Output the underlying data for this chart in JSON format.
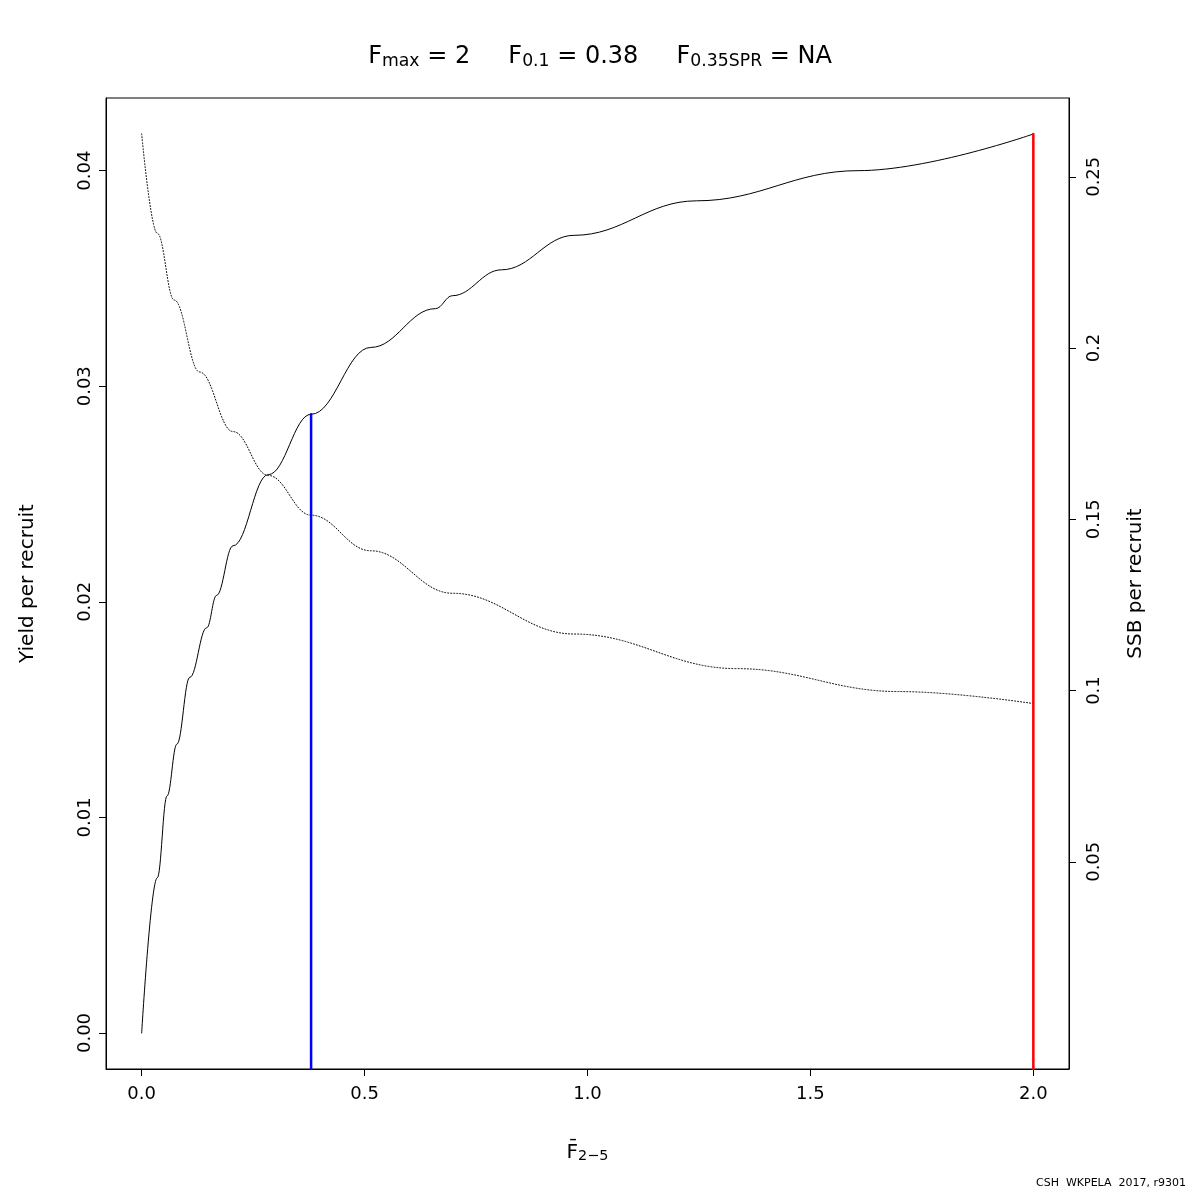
{
  "chart_data": {
    "type": "line",
    "title": "F$_{max}$ = 2     F$_{0.1}$ = 0.38     F$_{0.35SPR}$ = NA",
    "xlabel": "F̄$_{2−5}$",
    "ylabel": "Yield per recruit",
    "y2label": "SSB per recruit",
    "annotations": [
      "CSH  WKPELA  2017, r9301"
    ],
    "xlim": [
      -0.08,
      2.08
    ],
    "xticks": [
      {
        "value": 0,
        "label": "0.0"
      },
      {
        "value": 0.5,
        "label": "0.5"
      },
      {
        "value": 1,
        "label": "1.0"
      },
      {
        "value": 1.5,
        "label": "1.5"
      },
      {
        "value": 2,
        "label": "2.0"
      }
    ],
    "ylim": [
      -0.00167,
      0.04337
    ],
    "yticks": [
      {
        "value": 0,
        "label": "0.00"
      },
      {
        "value": 0.01,
        "label": "0.01"
      },
      {
        "value": 0.02,
        "label": "0.02"
      },
      {
        "value": 0.03,
        "label": "0.03"
      },
      {
        "value": 0.04,
        "label": "0.04"
      }
    ],
    "y2lim": [
      -0.0105,
      0.273
    ],
    "y2ticks": [
      0.05,
      0.1,
      0.15,
      0.2,
      0.25
    ],
    "grid": false,
    "marker": "none",
    "series": [
      {
        "color": "#000000",
        "line_style": "solid",
        "x": [
          0,
          0.035,
          0.057,
          0.079,
          0.108,
          0.146,
          0.168,
          0.205,
          0.284,
          0.38,
          0.514,
          0.659,
          0.697,
          0.807,
          0.97,
          1.244,
          1.607,
          2.0
        ],
        "values": [
          0,
          0.0072,
          0.011,
          0.0134,
          0.0165,
          0.0188,
          0.0203,
          0.0226,
          0.0259,
          0.0287,
          0.0318,
          0.0336,
          0.0342,
          0.0354,
          0.037,
          0.0386,
          0.04,
          0.0417
        ]
      },
      {
        "color": "#000000",
        "line_style": "dotted",
        "axis": "y2",
        "x": [
          0,
          0.035,
          0.073,
          0.13,
          0.205,
          0.284,
          0.38,
          0.514,
          0.697,
          0.97,
          1.334,
          1.698,
          2.0
        ],
        "values": [
          0.2625,
          0.2335,
          0.214,
          0.193,
          0.1756,
          0.1628,
          0.1512,
          0.1408,
          0.1284,
          0.1165,
          0.1064,
          0.0997,
          0.0962
        ]
      },
      {
        "color": "#0000ff",
        "line_style": "solid",
        "x": [
          0.38,
          0.38
        ],
        "values": [
          -0.00167,
          0.0287
        ]
      },
      {
        "color": "#ff0000",
        "line_style": "solid",
        "x": [
          2.0,
          2.0
        ],
        "values": [
          -0.00167,
          0.0417
        ]
      }
    ]
  }
}
